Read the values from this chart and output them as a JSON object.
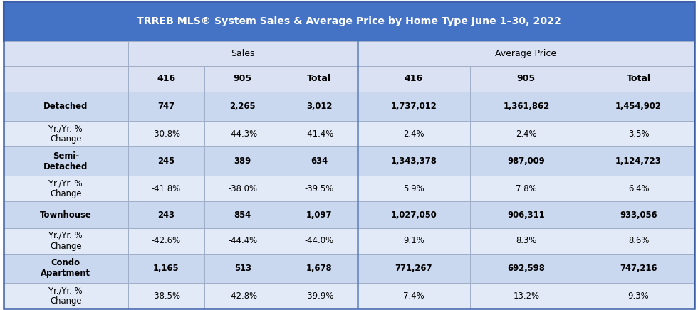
{
  "title": "TRREB MLS® System Sales & Average Price by Home Type June 1–30, 2022",
  "title_bg": "#4472C4",
  "title_fg": "#FFFFFF",
  "col_group_sales": "Sales",
  "col_group_avg": "Average Price",
  "col_headers": [
    "416",
    "905",
    "Total",
    "416",
    "905",
    "Total"
  ],
  "row_labels": [
    "Detached",
    "Yr./Yr. %\nChange",
    "Semi-\nDetached",
    "Yr./Yr. %\nChange",
    "Townhouse",
    "Yr./Yr. %\nChange",
    "Condo\nApartment",
    "Yr./Yr. %\nChange"
  ],
  "table_data": [
    [
      "747",
      "2,265",
      "3,012",
      "1,737,012",
      "1,361,862",
      "1,454,902"
    ],
    [
      "-30.8%",
      "-44.3%",
      "-41.4%",
      "2.4%",
      "2.4%",
      "3.5%"
    ],
    [
      "245",
      "389",
      "634",
      "1,343,378",
      "987,009",
      "1,124,723"
    ],
    [
      "-41.8%",
      "-38.0%",
      "-39.5%",
      "5.9%",
      "7.8%",
      "6.4%"
    ],
    [
      "243",
      "854",
      "1,097",
      "1,027,050",
      "906,311",
      "933,056"
    ],
    [
      "-42.6%",
      "-44.4%",
      "-44.0%",
      "9.1%",
      "8.3%",
      "8.6%"
    ],
    [
      "1,165",
      "513",
      "1,678",
      "771,267",
      "692,598",
      "747,216"
    ],
    [
      "-38.5%",
      "-42.8%",
      "-39.9%",
      "7.4%",
      "13.2%",
      "9.3%"
    ]
  ],
  "row_bold": [
    true,
    false,
    true,
    false,
    true,
    false,
    true,
    false
  ],
  "label_col_bold": [
    true,
    false,
    true,
    false,
    true,
    false,
    true,
    false
  ],
  "row_bg_main": "#C9D7EF",
  "row_bg_change": "#E2EAF7",
  "header_row_bg": "#D9E1F2",
  "title_border": "#3A5EA8",
  "cell_border": "#A0AEC8",
  "divider_color": "#5B7EC0",
  "outer_border": "#3A5EA8"
}
